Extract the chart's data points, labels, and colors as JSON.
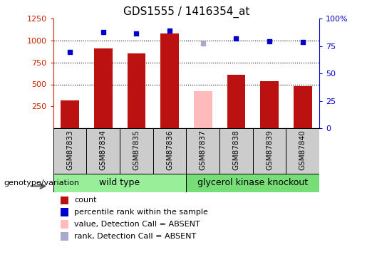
{
  "title": "GDS1555 / 1416354_at",
  "samples": [
    "GSM87833",
    "GSM87834",
    "GSM87835",
    "GSM87836",
    "GSM87837",
    "GSM87838",
    "GSM87839",
    "GSM87840"
  ],
  "bar_values": [
    320,
    910,
    850,
    1080,
    null,
    610,
    540,
    480
  ],
  "absent_bar_values": [
    null,
    null,
    null,
    null,
    420,
    null,
    null,
    null
  ],
  "bar_color": "#bb1111",
  "absent_bar_color": "#ffbbbb",
  "percentile_values": [
    870,
    1100,
    1085,
    1110,
    null,
    1025,
    990,
    985
  ],
  "absent_percentile_values": [
    null,
    null,
    null,
    null,
    970,
    null,
    null,
    null
  ],
  "percentile_color": "#0000cc",
  "absent_percentile_color": "#aaaacc",
  "ylim_left": [
    0,
    1250
  ],
  "ylim_right": [
    0,
    100
  ],
  "yticks_left": [
    250,
    500,
    750,
    1000,
    1250
  ],
  "yticks_right": [
    0,
    25,
    50,
    75,
    100
  ],
  "ytick_labels_right": [
    "0",
    "25",
    "50",
    "75",
    "100%"
  ],
  "group1_label": "wild type",
  "group2_label": "glycerol kinase knockout",
  "group1_indices": [
    0,
    1,
    2,
    3
  ],
  "group2_indices": [
    4,
    5,
    6,
    7
  ],
  "group1_color": "#99ee99",
  "group2_color": "#77dd77",
  "genotype_label": "genotype/variation",
  "legend_items": [
    {
      "label": "count",
      "color": "#bb1111"
    },
    {
      "label": "percentile rank within the sample",
      "color": "#0000cc"
    },
    {
      "label": "value, Detection Call = ABSENT",
      "color": "#ffbbbb"
    },
    {
      "label": "rank, Detection Call = ABSENT",
      "color": "#aaaacc"
    }
  ],
  "bar_width": 0.55,
  "left_tick_color": "#cc2200",
  "right_tick_color": "#0000cc",
  "label_bg_color": "#cccccc",
  "percentile_scale": 12.5
}
